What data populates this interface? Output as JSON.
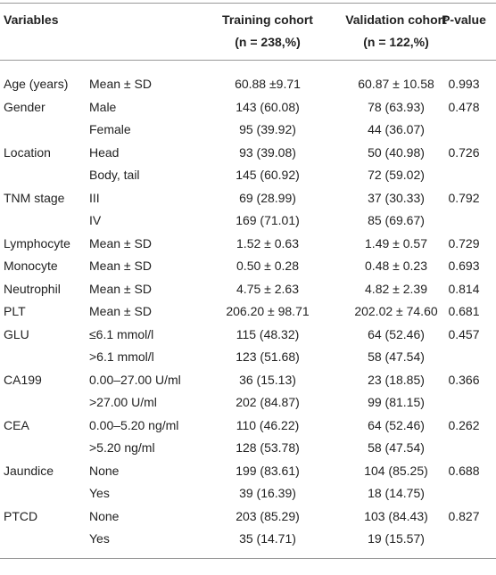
{
  "table": {
    "header": [
      {
        "title": "Variables"
      },
      {
        "title": "Training cohort",
        "subtitle": "(n = 238,%)"
      },
      {
        "title": "Validation cohort",
        "subtitle": "(n = 122,%)"
      },
      {
        "title": "P-value"
      }
    ],
    "rows": [
      [
        "Age (years)",
        "Mean ± SD",
        "60.88 ±9.71",
        "60.87 ± 10.58",
        "0.993"
      ],
      [
        "Gender",
        "Male",
        "143 (60.08)",
        "78 (63.93)",
        "0.478"
      ],
      [
        null,
        "Female",
        "95 (39.92)",
        "44 (36.07)",
        null
      ],
      [
        "Location",
        "Head",
        "93 (39.08)",
        "50 (40.98)",
        "0.726"
      ],
      [
        null,
        "Body, tail",
        "145 (60.92)",
        "72 (59.02)",
        null
      ],
      [
        "TNM stage",
        "III",
        "69 (28.99)",
        "37 (30.33)",
        "0.792"
      ],
      [
        null,
        "IV",
        "169 (71.01)",
        "85 (69.67)",
        null
      ],
      [
        "Lymphocyte",
        "Mean ± SD",
        "1.52 ± 0.63",
        "1.49 ± 0.57",
        "0.729"
      ],
      [
        "Monocyte",
        "Mean ± SD",
        "0.50 ± 0.28",
        "0.48 ± 0.23",
        "0.693"
      ],
      [
        "Neutrophil",
        "Mean ± SD",
        "4.75 ± 2.63",
        "4.82 ± 2.39",
        "0.814"
      ],
      [
        "PLT",
        "Mean ± SD",
        "206.20 ± 98.71",
        "202.02 ± 74.60",
        "0.681"
      ],
      [
        "GLU",
        "≤6.1 mmol/l",
        "115 (48.32)",
        "64 (52.46)",
        "0.457"
      ],
      [
        null,
        ">6.1 mmol/l",
        "123 (51.68)",
        "58 (47.54)",
        null
      ],
      [
        "CA199",
        "0.00–27.00 U/ml",
        "36 (15.13)",
        "23 (18.85)",
        "0.366"
      ],
      [
        null,
        ">27.00 U/ml",
        "202 (84.87)",
        "99 (81.15)",
        null
      ],
      [
        "CEA",
        "0.00–5.20 ng/ml",
        "110 (46.22)",
        "64 (52.46)",
        "0.262"
      ],
      [
        null,
        ">5.20 ng/ml",
        "128 (53.78)",
        "58 (47.54)",
        null
      ],
      [
        "Jaundice",
        "None",
        "199 (83.61)",
        "104 (85.25)",
        "0.688"
      ],
      [
        null,
        "Yes",
        "39 (16.39)",
        "18 (14.75)",
        null
      ],
      [
        "PTCD",
        "None",
        "203 (85.29)",
        "103 (84.43)",
        "0.827"
      ],
      [
        null,
        "Yes",
        "35 (14.71)",
        "19 (15.57)",
        null
      ]
    ]
  }
}
